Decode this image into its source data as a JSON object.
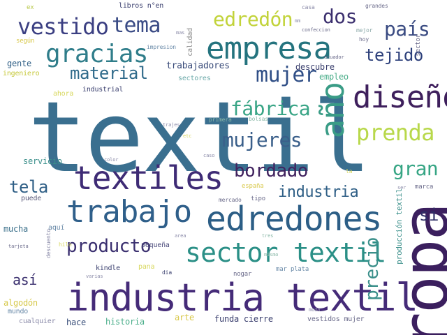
{
  "cloud": {
    "words": [
      {
        "text": "textil",
        "color": "#3a6f8f",
        "weight": 140
      },
      {
        "text": "ropa",
        "color": "#3b1f5e",
        "weight": 90,
        "orientation": "vertical"
      },
      {
        "text": "industria textil",
        "color": "#452b78",
        "weight": 54
      },
      {
        "text": "edredones",
        "color": "#2c5e86",
        "weight": 48
      },
      {
        "text": "textiles",
        "color": "#3e2b75",
        "weight": 46
      },
      {
        "text": "trabajo",
        "color": "#2f5f8a",
        "weight": 44
      },
      {
        "text": "empresa",
        "color": "#24737e",
        "weight": 44
      },
      {
        "text": "diseño",
        "color": "#3e1f5c",
        "weight": 44
      },
      {
        "text": "sector textil",
        "color": "#2a8f86",
        "weight": 38
      },
      {
        "text": "año",
        "color": "#3a9c86",
        "weight": 46,
        "orientation": "vertical"
      },
      {
        "text": "gracias",
        "color": "#2f7d8a",
        "weight": 36
      },
      {
        "text": "prenda",
        "color": "#b8d84a",
        "weight": 32
      },
      {
        "text": "vestido",
        "color": "#3b3f82",
        "weight": 32
      },
      {
        "text": "tema",
        "color": "#3a4b85",
        "weight": 30
      },
      {
        "text": "mujer",
        "color": "#2f4e86",
        "weight": 30
      },
      {
        "text": "mujeres",
        "color": "#3a5f8a",
        "weight": 28
      },
      {
        "text": "fábrica",
        "color": "#38a485",
        "weight": 28
      },
      {
        "text": "edredón",
        "color": "#c2d33a",
        "weight": 28
      },
      {
        "text": "dos",
        "color": "#3b2f6e",
        "weight": 28
      },
      {
        "text": "país",
        "color": "#3a4b82",
        "weight": 28
      },
      {
        "text": "producto",
        "color": "#3a2f6f",
        "weight": 26
      },
      {
        "text": "gran",
        "color": "#36a584",
        "weight": 28
      },
      {
        "text": "bordado",
        "color": "#41235f",
        "weight": 26
      },
      {
        "text": "material",
        "color": "#2f6a8a",
        "weight": 24
      },
      {
        "text": "tejido",
        "color": "#2c3f7a",
        "weight": 24
      },
      {
        "text": "tela",
        "color": "#2f5f86",
        "weight": 24
      },
      {
        "text": "industria",
        "color": "#2f5f86",
        "weight": 22
      },
      {
        "text": "precio",
        "color": "#3a8f8a",
        "weight": 26,
        "orientation": "vertical"
      },
      {
        "text": "si",
        "color": "#2f2f66",
        "weight": 24
      },
      {
        "text": "así",
        "color": "#3a2f6e",
        "weight": 20
      },
      {
        "text": "trabajadores",
        "color": "#3a4c7a",
        "weight": 13
      },
      {
        "text": "descubre",
        "color": "#3a3f6e",
        "weight": 12
      },
      {
        "text": "gente",
        "color": "#2f5f86",
        "weight": 12
      },
      {
        "text": "empleo",
        "color": "#4cae8a",
        "weight": 12
      },
      {
        "text": "sectores",
        "color": "#6aa8a8",
        "weight": 10
      },
      {
        "text": "ingeniero",
        "color": "#c6c83a",
        "weight": 10
      },
      {
        "text": "industrial",
        "color": "#3a3f6e",
        "weight": 10
      },
      {
        "text": "ahora",
        "color": "#d8d860",
        "weight": 10
      },
      {
        "text": "servicio",
        "color": "#3a8f8a",
        "weight": 12
      },
      {
        "text": "puede",
        "color": "#5a5a7a",
        "weight": 10
      },
      {
        "text": "mucha",
        "color": "#3a6f8a",
        "weight": 12
      },
      {
        "text": "aquí",
        "color": "#6a8aa8",
        "weight": 10
      },
      {
        "text": "pequeña",
        "color": "#4a4a7a",
        "weight": 10
      },
      {
        "text": "algodón",
        "color": "#d6c84a",
        "weight": 12
      },
      {
        "text": "mundo",
        "color": "#6a8aa8",
        "weight": 10
      },
      {
        "text": "cualquier",
        "color": "#8a8aa8",
        "weight": 10
      },
      {
        "text": "hace",
        "color": "#3a4f7a",
        "weight": 12
      },
      {
        "text": "historia",
        "color": "#4aae8a",
        "weight": 12
      },
      {
        "text": "arte",
        "color": "#d8c84a",
        "weight": 12
      },
      {
        "text": "funda cierre",
        "color": "#3a3f6e",
        "weight": 12
      },
      {
        "text": "vestidos mujer",
        "color": "#6a6a8a",
        "weight": 10
      },
      {
        "text": "kindle",
        "color": "#3a3f6e",
        "weight": 10
      },
      {
        "text": "pana",
        "color": "#d8d860",
        "weight": 10
      },
      {
        "text": "nogar",
        "color": "#6a6a8a",
        "weight": 9
      },
      {
        "text": "mar plata",
        "color": "#6a8aa8",
        "weight": 9
      },
      {
        "text": "producción textil",
        "color": "#3a8f8a",
        "weight": 11,
        "orientation": "vertical"
      },
      {
        "text": "marca",
        "color": "#6a6a8a",
        "weight": 9
      },
      {
        "text": "españa",
        "color": "#d8c84a",
        "weight": 9
      },
      {
        "text": "tipo",
        "color": "#6a6a8a",
        "weight": 9
      },
      {
        "text": "mercado",
        "color": "#6a6a8a",
        "weight": 8
      },
      {
        "text": "libros n°en",
        "color": "#3a3f6e",
        "weight": 10
      },
      {
        "text": "calidad",
        "color": "#8a8a8a",
        "weight": 10,
        "orientation": "vertical"
      },
      {
        "text": "impresion",
        "color": "#6a8aa8",
        "weight": 8
      },
      {
        "text": "según",
        "color": "#d8c84a",
        "weight": 9
      },
      {
        "text": "ex",
        "color": "#b8c84a",
        "weight": 9
      },
      {
        "text": "grandes",
        "color": "#6a6a8a",
        "weight": 8
      },
      {
        "text": "casa",
        "color": "#8a8aa8",
        "weight": 8
      },
      {
        "text": "hoy",
        "color": "#6a6a8a",
        "weight": 8
      },
      {
        "text": "mejor",
        "color": "#8aa8a8",
        "weight": 8
      },
      {
        "text": "confeccion",
        "color": "#6a6a8a",
        "weight": 7
      },
      {
        "text": "ecuador",
        "color": "#6a6a8a",
        "weight": 7
      },
      {
        "text": "sector",
        "color": "#6a6a8a",
        "weight": 9,
        "orientation": "vertical"
      },
      {
        "text": "primera",
        "color": "#8ab8a8",
        "weight": 8
      },
      {
        "text": "bolsas",
        "color": "#8ab8a8",
        "weight": 8
      },
      {
        "text": "trajes",
        "color": "#8a8aa8",
        "weight": 7
      },
      {
        "text": "caso",
        "color": "#8a8aa8",
        "weight": 7
      },
      {
        "text": "color",
        "color": "#8a8aa8",
        "weight": 7
      },
      {
        "text": "tarjeta",
        "color": "#6a6a8a",
        "weight": 7
      },
      {
        "text": "hilo",
        "color": "#d8d860",
        "weight": 8
      },
      {
        "text": "varias",
        "color": "#8a8aa8",
        "weight": 7
      },
      {
        "text": "dia",
        "color": "#3a3f6e",
        "weight": 8
      },
      {
        "text": "area",
        "color": "#8a8aa8",
        "weight": 7
      },
      {
        "text": "moda",
        "color": "#8a8aa8",
        "weight": 7
      },
      {
        "text": "tres",
        "color": "#8ab8a8",
        "weight": 7
      },
      {
        "text": "descuento",
        "color": "#8a8aa8",
        "weight": 8,
        "orientation": "vertical"
      },
      {
        "text": "ser",
        "color": "#8a8aa8",
        "weight": 7
      },
      {
        "text": "la",
        "color": "#d8d860",
        "weight": 8
      },
      {
        "text": "mm",
        "color": "#8a8aa8",
        "weight": 7
      },
      {
        "text": "mas",
        "color": "#8a8aa8",
        "weight": 7
      },
      {
        "text": "etc",
        "color": "#d8d860",
        "weight": 7
      },
      {
        "text": "mismo",
        "color": "#8ab8a8",
        "weight": 7
      }
    ]
  }
}
